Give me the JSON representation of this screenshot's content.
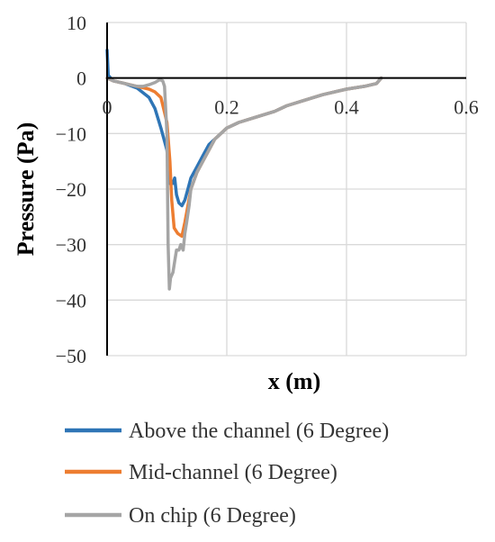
{
  "chart_data": {
    "type": "line",
    "xlabel": "x (m)",
    "ylabel": "Pressure (Pa)",
    "xlim": [
      0,
      0.6
    ],
    "ylim": [
      -50,
      10
    ],
    "x_ticks": [
      0,
      0.2,
      0.4,
      0.6
    ],
    "x_tick_labels": [
      "0",
      "0.2",
      "0.4",
      "0.6"
    ],
    "y_ticks": [
      10,
      0,
      -10,
      -20,
      -30,
      -40,
      -50
    ],
    "y_tick_labels": [
      "10",
      "0",
      "−10",
      "−20",
      "−30",
      "−40",
      "−50"
    ],
    "grid": true,
    "legend_position": "bottom",
    "series": [
      {
        "name": "Above the channel (6 Degree)",
        "color": "#2E75B6",
        "points": [
          [
            0,
            5
          ],
          [
            0.002,
            0.5
          ],
          [
            0.01,
            -0.5
          ],
          [
            0.03,
            -1
          ],
          [
            0.05,
            -1.8
          ],
          [
            0.07,
            -3.5
          ],
          [
            0.08,
            -5.5
          ],
          [
            0.09,
            -9
          ],
          [
            0.1,
            -13
          ],
          [
            0.105,
            -19
          ],
          [
            0.11,
            -19
          ],
          [
            0.113,
            -18
          ],
          [
            0.116,
            -21
          ],
          [
            0.12,
            -22.5
          ],
          [
            0.125,
            -23
          ],
          [
            0.13,
            -22
          ],
          [
            0.135,
            -20
          ],
          [
            0.14,
            -18
          ],
          [
            0.15,
            -16
          ],
          [
            0.16,
            -14
          ],
          [
            0.17,
            -12
          ],
          [
            0.18,
            -11
          ],
          [
            0.19,
            -10
          ],
          [
            0.2,
            -9
          ],
          [
            0.22,
            -8
          ],
          [
            0.25,
            -7
          ],
          [
            0.28,
            -6
          ],
          [
            0.3,
            -5
          ],
          [
            0.33,
            -4
          ],
          [
            0.36,
            -3
          ],
          [
            0.4,
            -2
          ],
          [
            0.43,
            -1.5
          ],
          [
            0.45,
            -1
          ],
          [
            0.458,
            0
          ]
        ]
      },
      {
        "name": "Mid-channel (6 Degree)",
        "color": "#ED7D31",
        "points": [
          [
            0,
            0
          ],
          [
            0.01,
            -0.5
          ],
          [
            0.03,
            -1
          ],
          [
            0.05,
            -1.5
          ],
          [
            0.07,
            -2
          ],
          [
            0.08,
            -2.5
          ],
          [
            0.09,
            -3.5
          ],
          [
            0.1,
            -8
          ],
          [
            0.105,
            -15
          ],
          [
            0.108,
            -22
          ],
          [
            0.112,
            -27
          ],
          [
            0.118,
            -28
          ],
          [
            0.125,
            -28.5
          ],
          [
            0.13,
            -26
          ],
          [
            0.135,
            -23
          ],
          [
            0.14,
            -20
          ],
          [
            0.15,
            -17
          ],
          [
            0.16,
            -15
          ],
          [
            0.17,
            -13
          ],
          [
            0.18,
            -11
          ],
          [
            0.19,
            -10
          ],
          [
            0.2,
            -9
          ],
          [
            0.22,
            -8
          ],
          [
            0.25,
            -7
          ],
          [
            0.28,
            -6
          ],
          [
            0.3,
            -5
          ],
          [
            0.33,
            -4
          ],
          [
            0.36,
            -3
          ],
          [
            0.4,
            -2
          ],
          [
            0.43,
            -1.5
          ],
          [
            0.45,
            -1
          ],
          [
            0.458,
            0
          ]
        ]
      },
      {
        "name": "On chip (6 Degree)",
        "color": "#A5A5A5",
        "points": [
          [
            0,
            0
          ],
          [
            0.01,
            -0.5
          ],
          [
            0.03,
            -1
          ],
          [
            0.05,
            -1.5
          ],
          [
            0.06,
            -1.5
          ],
          [
            0.07,
            -1.2
          ],
          [
            0.08,
            -0.8
          ],
          [
            0.088,
            -0.3
          ],
          [
            0.093,
            -0.5
          ],
          [
            0.096,
            -1.5
          ],
          [
            0.1,
            -10
          ],
          [
            0.102,
            -30
          ],
          [
            0.104,
            -38
          ],
          [
            0.106,
            -36
          ],
          [
            0.11,
            -35
          ],
          [
            0.113,
            -33
          ],
          [
            0.116,
            -31
          ],
          [
            0.12,
            -31
          ],
          [
            0.123,
            -30
          ],
          [
            0.127,
            -31
          ],
          [
            0.13,
            -28
          ],
          [
            0.133,
            -26
          ],
          [
            0.137,
            -23
          ],
          [
            0.14,
            -20
          ],
          [
            0.15,
            -17
          ],
          [
            0.16,
            -15
          ],
          [
            0.17,
            -13
          ],
          [
            0.18,
            -11
          ],
          [
            0.19,
            -10
          ],
          [
            0.2,
            -9
          ],
          [
            0.22,
            -8
          ],
          [
            0.25,
            -7
          ],
          [
            0.28,
            -6
          ],
          [
            0.3,
            -5
          ],
          [
            0.33,
            -4
          ],
          [
            0.36,
            -3
          ],
          [
            0.4,
            -2
          ],
          [
            0.43,
            -1.5
          ],
          [
            0.45,
            -1
          ],
          [
            0.458,
            0
          ]
        ]
      }
    ]
  }
}
